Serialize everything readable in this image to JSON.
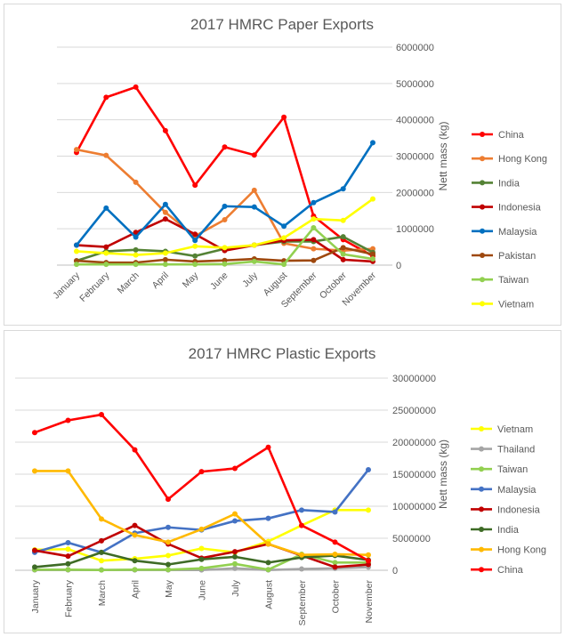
{
  "chart_data": [
    {
      "type": "line",
      "title": "2017 HMRC Paper Exports",
      "ylabel": "Nett mass (kg)",
      "ylim": [
        0,
        6000000
      ],
      "yticks": [
        0,
        1000000,
        2000000,
        3000000,
        4000000,
        5000000,
        6000000
      ],
      "grid": true,
      "legend": "right",
      "categories": [
        "January",
        "February",
        "March",
        "April",
        "May",
        "June",
        "July",
        "August",
        "September",
        "October",
        "November"
      ],
      "series": [
        {
          "name": "China",
          "color": "#FF0000",
          "values": [
            3100000,
            4620000,
            4900000,
            3700000,
            2200000,
            3250000,
            3030000,
            4070000,
            1350000,
            700000,
            250000
          ]
        },
        {
          "name": "Hong Kong",
          "color": "#ED7D31",
          "values": [
            3180000,
            3020000,
            2280000,
            1450000,
            800000,
            1250000,
            2060000,
            600000,
            450000,
            400000,
            450000
          ]
        },
        {
          "name": "India",
          "color": "#548235",
          "values": [
            120000,
            380000,
            420000,
            380000,
            250000,
            450000,
            550000,
            650000,
            650000,
            780000,
            350000
          ]
        },
        {
          "name": "Indonesia",
          "color": "#C00000",
          "values": [
            550000,
            500000,
            900000,
            1270000,
            850000,
            400000,
            550000,
            680000,
            700000,
            150000,
            100000
          ]
        },
        {
          "name": "Malaysia",
          "color": "#0070C0",
          "values": [
            550000,
            1570000,
            770000,
            1670000,
            680000,
            1620000,
            1600000,
            1070000,
            1720000,
            2100000,
            3370000
          ]
        },
        {
          "name": "Pakistan",
          "color": "#9E480E",
          "values": [
            120000,
            70000,
            70000,
            150000,
            100000,
            130000,
            170000,
            120000,
            130000,
            480000,
            300000
          ]
        },
        {
          "name": "Taiwan",
          "color": "#92D050",
          "values": [
            20000,
            20000,
            20000,
            20000,
            20000,
            30000,
            100000,
            20000,
            1030000,
            300000,
            170000
          ]
        },
        {
          "name": "Vietnam",
          "color": "#FFFF00",
          "values": [
            380000,
            330000,
            280000,
            330000,
            520000,
            480000,
            550000,
            750000,
            1270000,
            1230000,
            1820000
          ]
        }
      ]
    },
    {
      "type": "line",
      "title": "2017 HMRC Plastic Exports",
      "ylabel": "Nett mass (kg)",
      "ylim": [
        0,
        30000000
      ],
      "yticks": [
        0,
        5000000,
        10000000,
        15000000,
        20000000,
        25000000,
        30000000
      ],
      "grid": true,
      "legend": "right",
      "categories": [
        "January",
        "February",
        "March",
        "April",
        "May",
        "June",
        "July",
        "August",
        "September",
        "October",
        "November"
      ],
      "series": [
        {
          "name": "Vietnam",
          "color": "#FFFF00",
          "values": [
            3200000,
            3300000,
            1500000,
            1800000,
            2300000,
            3400000,
            2800000,
            4500000,
            7000000,
            9400000,
            9400000
          ]
        },
        {
          "name": "Thailand",
          "color": "#A5A5A5",
          "values": [
            50000,
            50000,
            50000,
            50000,
            50000,
            50000,
            300000,
            50000,
            200000,
            300000,
            500000
          ]
        },
        {
          "name": "Taiwan",
          "color": "#92D050",
          "values": [
            100000,
            100000,
            50000,
            100000,
            100000,
            300000,
            1000000,
            100000,
            2500000,
            1200000,
            1200000
          ]
        },
        {
          "name": "Malaysia",
          "color": "#4472C4",
          "values": [
            2800000,
            4300000,
            2800000,
            5800000,
            6700000,
            6300000,
            7700000,
            8100000,
            9400000,
            9100000,
            15700000
          ]
        },
        {
          "name": "Indonesia",
          "color": "#C00000",
          "values": [
            3100000,
            2200000,
            4600000,
            7000000,
            4100000,
            1900000,
            2900000,
            4100000,
            2300000,
            500000,
            900000
          ]
        },
        {
          "name": "India",
          "color": "#3E6B26",
          "values": [
            500000,
            1000000,
            2800000,
            1500000,
            900000,
            1700000,
            2100000,
            1200000,
            2000000,
            2300000,
            1600000
          ]
        },
        {
          "name": "Hong Kong",
          "color": "#FFB900",
          "values": [
            15500000,
            15500000,
            8000000,
            5500000,
            4400000,
            6400000,
            8800000,
            4100000,
            2400000,
            2500000,
            2400000
          ]
        },
        {
          "name": "China",
          "color": "#FF0000",
          "values": [
            21500000,
            23400000,
            24300000,
            18800000,
            11100000,
            15400000,
            15900000,
            19200000,
            7000000,
            4400000,
            1500000
          ]
        }
      ]
    }
  ]
}
